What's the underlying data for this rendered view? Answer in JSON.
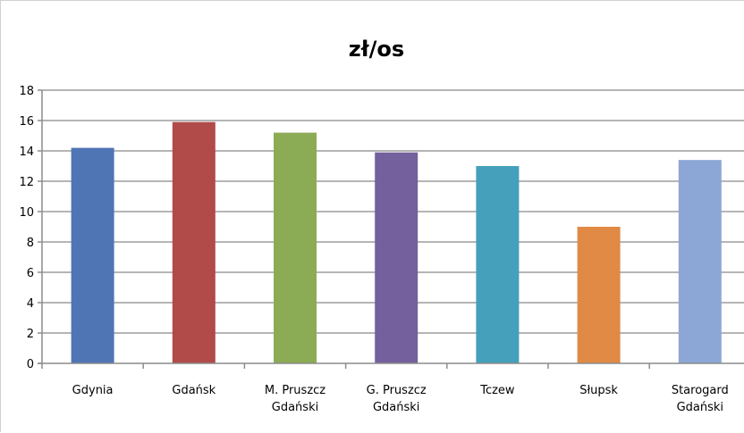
{
  "chart_data": {
    "type": "bar",
    "title": "zł/os",
    "categories": [
      [
        "Gdynia"
      ],
      [
        "Gdańsk"
      ],
      [
        "M. Pruszcz",
        "Gdański"
      ],
      [
        "G. Pruszcz",
        "Gdański"
      ],
      [
        "Tczew"
      ],
      [
        "Słupsk"
      ],
      [
        "Starogard",
        "Gdański"
      ]
    ],
    "values": [
      14.2,
      15.9,
      15.2,
      13.9,
      13.0,
      9.0,
      13.4
    ],
    "colors": [
      "#4f75b4",
      "#b04b4a",
      "#8cab55",
      "#74609c",
      "#45a0bb",
      "#e08a46",
      "#8ca7d5"
    ],
    "ylim": [
      0,
      18
    ],
    "yticks": [
      "0",
      "2",
      "4",
      "6",
      "8",
      "10",
      "12",
      "14",
      "16",
      "18"
    ],
    "grid": true,
    "legend": "none",
    "xlabel": "",
    "ylabel": ""
  }
}
